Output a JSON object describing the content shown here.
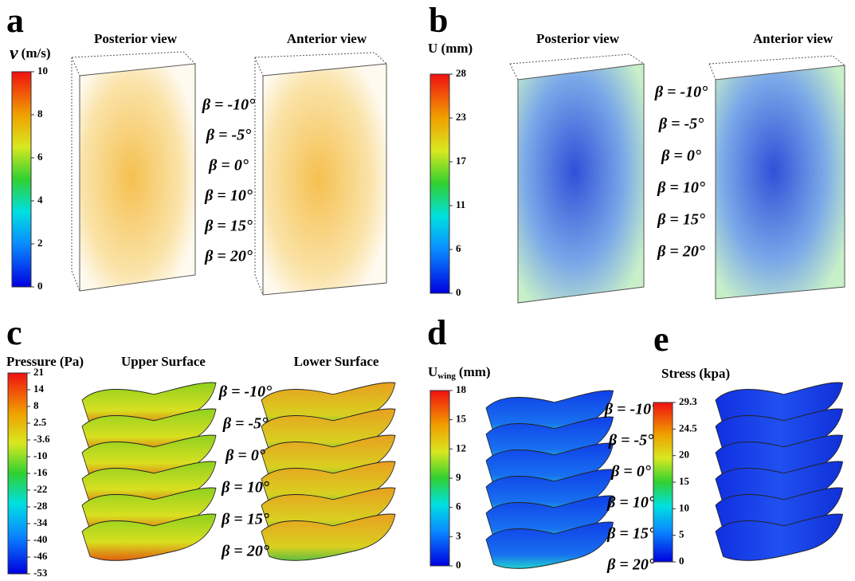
{
  "panels": [
    {
      "label": "a",
      "colorbar": {
        "symbol": "v",
        "unit": "(m/s)",
        "ticks": [
          10,
          8,
          6,
          4,
          2,
          0
        ]
      },
      "views": [
        "Posterior view",
        "Anterior view"
      ],
      "angles": [
        "β = -10°",
        "β = -5°",
        "β = 0°",
        "β = 10°",
        "β = 15°",
        "β = 20°"
      ]
    },
    {
      "label": "b",
      "colorbar": {
        "title": "U (mm)",
        "ticks": [
          28,
          23,
          17,
          11,
          6,
          0
        ]
      },
      "views": [
        "Posterior view",
        "Anterior view"
      ],
      "angles": [
        "β = -10°",
        "β = -5°",
        "β = 0°",
        "β = 10°",
        "β = 15°",
        "β = 20°"
      ]
    },
    {
      "label": "c",
      "colorbar": {
        "title": "Pressure (Pa)",
        "ticks": [
          21,
          14,
          8,
          2.5,
          -3.6,
          -10,
          -16,
          -22,
          -28,
          -34,
          -40,
          -46,
          -53
        ]
      },
      "views": [
        "Upper Surface",
        "Lower Surface"
      ],
      "angles": [
        "β = -10°",
        "β = -5°",
        "β = 0°",
        "β = 10°",
        "β = 15°",
        "β = 20°"
      ]
    },
    {
      "label": "d",
      "colorbar": {
        "symbol": "U",
        "sub": "wing",
        "unit": "(mm)",
        "ticks": [
          18,
          15,
          12,
          9,
          6,
          3,
          0
        ]
      },
      "angles": [
        "β = -10°",
        "β = -5°",
        "β = 0°",
        "β = 10°",
        "β = 15°",
        "β = 20°"
      ]
    },
    {
      "label": "e",
      "colorbar": {
        "title": "Stress (kpa)",
        "ticks": [
          29.3,
          24.5,
          20,
          15,
          10,
          5,
          0
        ]
      }
    }
  ]
}
